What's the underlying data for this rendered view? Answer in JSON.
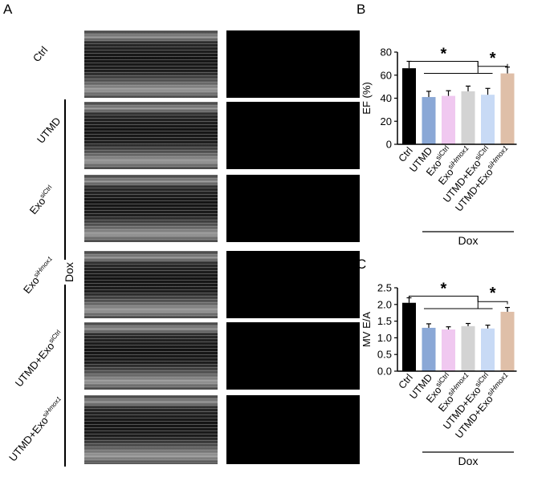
{
  "panel_labels": {
    "a": "A",
    "b": "B",
    "c": "C"
  },
  "panel_a": {
    "rows": [
      {
        "base": "Ctrl",
        "sup": ""
      },
      {
        "base": "UTMD",
        "sup": ""
      },
      {
        "base": "Exo",
        "sup": "siCtrl"
      },
      {
        "base": "Exo",
        "sup": "siHmox1"
      },
      {
        "base": "UTMD+Exo",
        "sup": "siCtrl"
      },
      {
        "base": "UTMD+Exo",
        "sup": "siHmox1"
      }
    ],
    "group_label": "Dox"
  },
  "chart_data": [
    {
      "type": "bar",
      "title": "",
      "ylabel": "EF (%)",
      "ylim": [
        0,
        80
      ],
      "yticks": [
        0,
        20,
        40,
        60,
        80
      ],
      "categories": [
        {
          "base": "Ctrl",
          "sup": ""
        },
        {
          "base": "UTMD",
          "sup": ""
        },
        {
          "base": "Exo",
          "sup": "siCtrl"
        },
        {
          "base": "Exo",
          "sup": "siHmox1"
        },
        {
          "base": "UTMD+Exo",
          "sup": "siCtrl"
        },
        {
          "base": "UTMD+Exo",
          "sup": "siHmox1"
        }
      ],
      "values": [
        66,
        41,
        42,
        46,
        43,
        61.5
      ],
      "errors": [
        6,
        5,
        4.5,
        4.5,
        5.5,
        5.5
      ],
      "colors": [
        "#000000",
        "#8aa8d6",
        "#f0c8f0",
        "#d3d3d3",
        "#c8daf5",
        "#dfbfa8"
      ],
      "significance": [
        "*",
        "*"
      ],
      "group_label": "Dox"
    },
    {
      "type": "bar",
      "title": "",
      "ylabel": "MV E/A",
      "ylim": [
        0,
        2.5
      ],
      "yticks": [
        "0.0",
        "0.5",
        "1.0",
        "1.5",
        "2.0",
        "2.5"
      ],
      "categories": [
        {
          "base": "Ctrl",
          "sup": ""
        },
        {
          "base": "UTMD",
          "sup": ""
        },
        {
          "base": "Exo",
          "sup": "siCtrl"
        },
        {
          "base": "Exo",
          "sup": "siHmox1"
        },
        {
          "base": "UTMD+Exo",
          "sup": "siCtrl"
        },
        {
          "base": "UTMD+Exo",
          "sup": "siHmox1"
        }
      ],
      "values": [
        2.05,
        1.3,
        1.25,
        1.35,
        1.28,
        1.78
      ],
      "errors": [
        0.15,
        0.12,
        0.08,
        0.08,
        0.1,
        0.13
      ],
      "colors": [
        "#000000",
        "#8aa8d6",
        "#f0c8f0",
        "#d3d3d3",
        "#c8daf5",
        "#dfbfa8"
      ],
      "significance": [
        "*",
        "*"
      ],
      "group_label": "Dox"
    }
  ]
}
